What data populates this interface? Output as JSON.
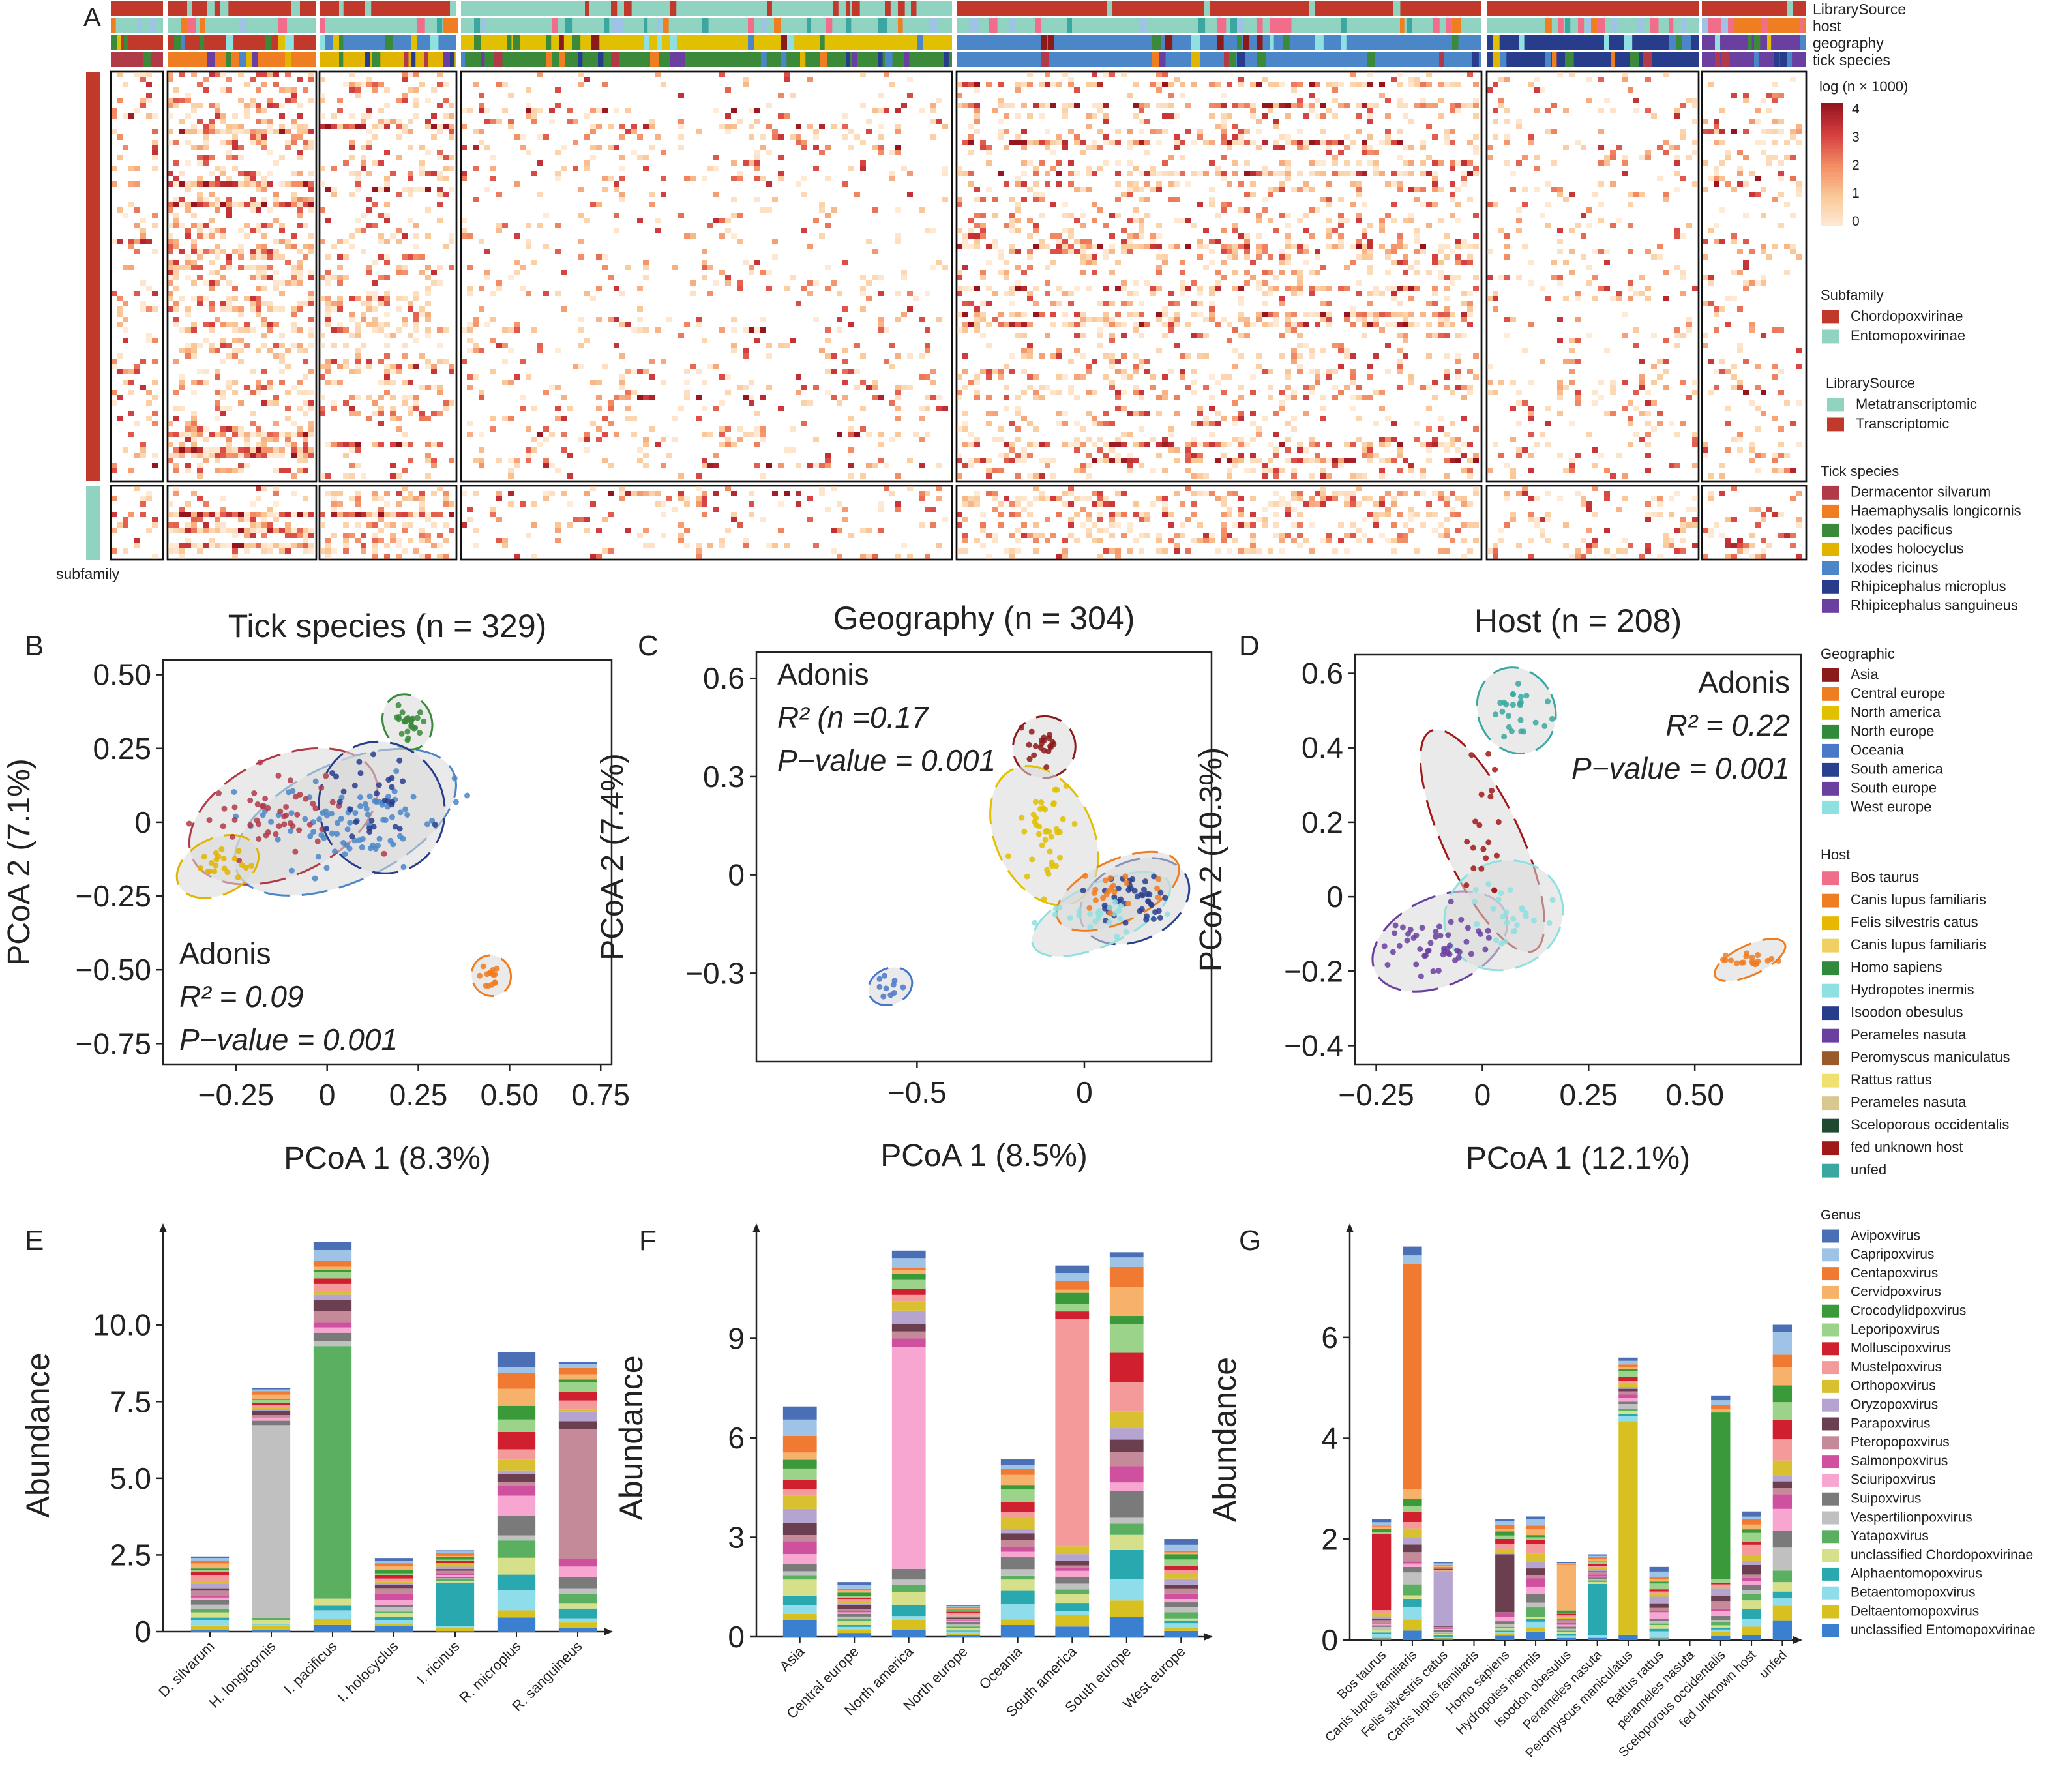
{
  "panel_letters": [
    "A",
    "B",
    "C",
    "D",
    "E",
    "F",
    "G"
  ],
  "heatmap": {
    "track_labels": [
      "LibrarySource",
      "host",
      "geography",
      "tick species"
    ],
    "row_annotation_label": "subfamily",
    "color_legend": {
      "title": "log (n × 1000)",
      "ticks": [
        "4",
        "3",
        "2",
        "1",
        "0"
      ]
    },
    "legends": [
      {
        "title": "Subfamily",
        "items": [
          {
            "label": "Chordopoxvirinae",
            "color": "#c0392b"
          },
          {
            "label": "Entomopoxvirinae",
            "color": "#8fd3c0"
          }
        ]
      },
      {
        "title": "LibrarySource",
        "items": [
          {
            "label": "Metatranscriptomic",
            "color": "#8fd3c0"
          },
          {
            "label": "Transcriptomic",
            "color": "#c0392b"
          }
        ]
      },
      {
        "title": "Tick species",
        "items": [
          {
            "label": "Dermacentor silvarum",
            "color": "#b03a48"
          },
          {
            "label": "Haemaphysalis longicornis",
            "color": "#ef7d22"
          },
          {
            "label": "Ixodes pacificus",
            "color": "#3a8a3a"
          },
          {
            "label": "Ixodes holocyclus",
            "color": "#e0b400"
          },
          {
            "label": "Ixodes ricinus",
            "color": "#4a86c8"
          },
          {
            "label": "Rhipicephalus microplus",
            "color": "#283c8c"
          },
          {
            "label": "Rhipicephalus sanguineus",
            "color": "#6a3fa0"
          }
        ]
      }
    ]
  },
  "scatter_legends": [
    {
      "title": "Geographic",
      "items": [
        {
          "label": "Asia",
          "color": "#8b1a1a"
        },
        {
          "label": "Central europe",
          "color": "#ef7d22"
        },
        {
          "label": "North america",
          "color": "#e0c000"
        },
        {
          "label": "North europe",
          "color": "#2f8a3a"
        },
        {
          "label": "Oceania",
          "color": "#4a78c8"
        },
        {
          "label": "South america",
          "color": "#2a3f8f"
        },
        {
          "label": "South europe",
          "color": "#6a3fa0"
        },
        {
          "label": "West europe",
          "color": "#8fe0e0"
        }
      ]
    },
    {
      "title": "Host",
      "items": [
        {
          "label": "Bos taurus",
          "color": "#f06e8a"
        },
        {
          "label": "Canis lupus familiaris",
          "color": "#ef7d22"
        },
        {
          "label": "Felis silvestris catus",
          "color": "#e8b800"
        },
        {
          "label": "Canis lupus familiaris",
          "color": "#f0d060"
        },
        {
          "label": "Homo sapiens",
          "color": "#2f8a3a"
        },
        {
          "label": "Hydropotes inermis",
          "color": "#8fe0e0"
        },
        {
          "label": "Isoodon obesulus",
          "color": "#283c8c"
        },
        {
          "label": "Perameles nasuta",
          "color": "#6a3fa0"
        },
        {
          "label": "Peromyscus maniculatus",
          "color": "#9a5a2a"
        },
        {
          "label": "Rattus rattus",
          "color": "#f0e070"
        },
        {
          "label": "Perameles nasuta",
          "color": "#d8c890"
        },
        {
          "label": "Sceloporous occidentalis",
          "color": "#1f4a30"
        },
        {
          "label": "fed unknown host",
          "color": "#a01818"
        },
        {
          "label": "unfed",
          "color": "#3aa8a0"
        }
      ]
    }
  ],
  "genus_legend": {
    "title": "Genus",
    "items": [
      {
        "label": "Avipoxvirus",
        "color": "#4a6fb5"
      },
      {
        "label": "Capripoxvirus",
        "color": "#9ec3e6"
      },
      {
        "label": "Centapoxvirus",
        "color": "#f07a32"
      },
      {
        "label": "Cervidpoxvirus",
        "color": "#f6b26b"
      },
      {
        "label": "Crocodylidpoxvirus",
        "color": "#3a9a3a"
      },
      {
        "label": "Leporipoxvirus",
        "color": "#9bd38a"
      },
      {
        "label": "Molluscipoxvirus",
        "color": "#d02030"
      },
      {
        "label": "Mustelpoxvirus",
        "color": "#f59a9a"
      },
      {
        "label": "Orthopoxvirus",
        "color": "#d8c030"
      },
      {
        "label": "Oryzopoxvirus",
        "color": "#b5a3d0"
      },
      {
        "label": "Parapoxvirus",
        "color": "#6b3f4f"
      },
      {
        "label": "Pteropopoxvirus",
        "color": "#c48a9a"
      },
      {
        "label": "Salmonpoxvirus",
        "color": "#d050a0"
      },
      {
        "label": "Sciuripoxvirus",
        "color": "#f6a6d0"
      },
      {
        "label": "Suipoxvirus",
        "color": "#7a7a7a"
      },
      {
        "label": "Vespertilionpoxvirus",
        "color": "#c0c0c0"
      },
      {
        "label": "Yatapoxvirus",
        "color": "#5ab060"
      },
      {
        "label": "unclassified Chordopoxvirinae",
        "color": "#d6e08a"
      },
      {
        "label": "Alphaentomopoxvirus",
        "color": "#2aa8b0"
      },
      {
        "label": "Betaentomopoxvirus",
        "color": "#8fdcea"
      },
      {
        "label": "Deltaentomopoxvirus",
        "color": "#d8c020"
      },
      {
        "label": "unclassified Entomopoxvirinae",
        "color": "#3a7fd0"
      }
    ]
  },
  "chart_data": [
    {
      "panel": "B",
      "type": "scatter",
      "title": "Tick species (n = 329)",
      "xlabel": "PCoA 1 (8.3%)",
      "ylabel": "PCoA 2 (7.1%)",
      "xlim": [
        -0.45,
        0.78
      ],
      "ylim": [
        -0.82,
        0.55
      ],
      "xticks": [
        "−0.25",
        "0",
        "0.25",
        "0.50",
        "0.75"
      ],
      "xtick_values": [
        -0.25,
        0,
        0.25,
        0.5,
        0.75
      ],
      "yticks": [
        "0.50",
        "0.25",
        "0",
        "−0.25",
        "−0.50",
        "−0.75"
      ],
      "ytick_values": [
        0.5,
        0.25,
        0,
        -0.25,
        -0.5,
        -0.75
      ],
      "annotation": [
        "Adonis",
        "R² = 0.09",
        "P−value = 0.001"
      ],
      "clusters": [
        {
          "color": "#4a86c8",
          "center": [
            0.05,
            0.0
          ],
          "spread": [
            0.12,
            0.07
          ],
          "n": 90
        },
        {
          "color": "#b03a48",
          "center": [
            -0.12,
            0.02
          ],
          "spread": [
            0.1,
            0.07
          ],
          "n": 50
        },
        {
          "color": "#3a8a3a",
          "center": [
            0.22,
            0.34
          ],
          "spread": [
            0.02,
            0.03
          ],
          "n": 25
        },
        {
          "color": "#e0b400",
          "center": [
            -0.3,
            -0.15
          ],
          "spread": [
            0.04,
            0.03
          ],
          "n": 20
        },
        {
          "color": "#283c8c",
          "center": [
            0.15,
            0.05
          ],
          "spread": [
            0.06,
            0.08
          ],
          "n": 30
        },
        {
          "color": "#ef7d22",
          "center": [
            0.45,
            -0.52
          ],
          "spread": [
            0.015,
            0.02
          ],
          "n": 15
        }
      ]
    },
    {
      "panel": "C",
      "type": "scatter",
      "title": "Geography (n = 304)",
      "xlabel": "PCoA 1 (8.5%)",
      "ylabel": "PCoA 2 (7.4%)",
      "xlim": [
        -0.98,
        0.38
      ],
      "ylim": [
        -0.57,
        0.68
      ],
      "xticks": [
        "−0.5",
        "0"
      ],
      "xtick_values": [
        -0.5,
        0
      ],
      "yticks": [
        "0.6",
        "0.3",
        "0",
        "−0.3"
      ],
      "ytick_values": [
        0.6,
        0.3,
        0,
        -0.3
      ],
      "annotation": [
        "Adonis",
        "R² (n =0.17",
        "P−value = 0.001"
      ],
      "clusters": [
        {
          "color": "#8b1a1a",
          "center": [
            -0.12,
            0.39
          ],
          "spread": [
            0.03,
            0.03
          ],
          "n": 20
        },
        {
          "color": "#e0c000",
          "center": [
            -0.12,
            0.12
          ],
          "spread": [
            0.05,
            0.08
          ],
          "n": 40
        },
        {
          "color": "#2a3f8f",
          "center": [
            0.15,
            -0.08
          ],
          "spread": [
            0.06,
            0.04
          ],
          "n": 45
        },
        {
          "color": "#4a78c8",
          "center": [
            -0.58,
            -0.34
          ],
          "spread": [
            0.02,
            0.015
          ],
          "n": 10
        },
        {
          "color": "#8fe0e0",
          "center": [
            0.05,
            -0.12
          ],
          "spread": [
            0.08,
            0.03
          ],
          "n": 25
        },
        {
          "color": "#ef7d22",
          "center": [
            0.1,
            -0.05
          ],
          "spread": [
            0.07,
            0.03
          ],
          "n": 20
        }
      ]
    },
    {
      "panel": "D",
      "type": "scatter",
      "title": "Host (n = 208)",
      "xlabel": "PCoA 1 (12.1%)",
      "ylabel": "PCoA 2 (10.3%)",
      "xlim": [
        -0.3,
        0.75
      ],
      "ylim": [
        -0.45,
        0.65
      ],
      "xticks": [
        "−0.25",
        "0",
        "0.25",
        "0.50"
      ],
      "xtick_values": [
        -0.25,
        0,
        0.25,
        0.5
      ],
      "yticks": [
        "0.6",
        "0.4",
        "0.2",
        "0",
        "−0.2",
        "−0.4"
      ],
      "ytick_values": [
        0.6,
        0.4,
        0.2,
        0,
        -0.2,
        -0.4
      ],
      "annotation": [
        "Adonis",
        "R² = 0.22",
        "P−value = 0.001"
      ],
      "clusters": [
        {
          "color": "#3aa8a0",
          "center": [
            0.08,
            0.5
          ],
          "spread": [
            0.03,
            0.04
          ],
          "n": 25
        },
        {
          "color": "#6a3fa0",
          "center": [
            -0.1,
            -0.12
          ],
          "spread": [
            0.06,
            0.04
          ],
          "n": 50
        },
        {
          "color": "#a01818",
          "center": [
            0.0,
            0.15
          ],
          "spread": [
            0.03,
            0.12
          ],
          "n": 20
        },
        {
          "color": "#ef7d22",
          "center": [
            0.63,
            -0.17
          ],
          "spread": [
            0.03,
            0.01
          ],
          "n": 20
        },
        {
          "color": "#8fe0e0",
          "center": [
            0.05,
            -0.05
          ],
          "spread": [
            0.05,
            0.05
          ],
          "n": 25
        }
      ]
    },
    {
      "panel": "E",
      "type": "bar",
      "stacked": true,
      "ylabel": "Abundance",
      "ylim": [
        0,
        12.8
      ],
      "yticks": [
        "0",
        "2.5",
        "5.0",
        "7.5",
        "10.0"
      ],
      "ytick_values": [
        0,
        2.5,
        5,
        7.5,
        10
      ],
      "categories": [
        "D. silvarum",
        "H. longicornis",
        "I. pacificus",
        "I. holocyclus",
        "I. ricinus",
        "R. microplus",
        "R. sanguineus"
      ],
      "totals": [
        2.45,
        7.95,
        12.7,
        2.4,
        2.65,
        9.1,
        8.8
      ]
    },
    {
      "panel": "F",
      "type": "bar",
      "stacked": true,
      "ylabel": "Abundance",
      "ylim": [
        0,
        12.0
      ],
      "yticks": [
        "0",
        "3",
        "6",
        "9"
      ],
      "ytick_values": [
        0,
        3,
        6,
        9
      ],
      "categories": [
        "Asia",
        "Central europe",
        "North america",
        "North europe",
        "Oceania",
        "South america",
        "South europe",
        "West europe"
      ],
      "totals": [
        6.95,
        1.65,
        11.65,
        0.95,
        5.35,
        11.2,
        11.6,
        2.95
      ]
    },
    {
      "panel": "G",
      "type": "bar",
      "stacked": true,
      "ylabel": "Abundance",
      "ylim": [
        0,
        7.95
      ],
      "yticks": [
        "0",
        "2",
        "4",
        "6"
      ],
      "ytick_values": [
        0,
        2,
        4,
        6
      ],
      "categories": [
        "Bos taurus",
        "Canis lupus familiaris",
        "Felis silvestris catus",
        "Canis lupus familiaris",
        "Homo sapiens",
        "Hydropotes inermis",
        "Isoodon obesulus",
        "Perameles nasuta",
        "Peromyscus maniculatus",
        "Rattus rattus",
        "perameles nasuta",
        "Sceloporous occidentalis",
        "fed unknown host",
        "unfed"
      ],
      "totals": [
        2.4,
        7.8,
        1.55,
        0.0,
        2.4,
        2.45,
        1.55,
        1.7,
        5.6,
        1.45,
        0.0,
        4.85,
        2.55,
        6.25
      ]
    }
  ]
}
